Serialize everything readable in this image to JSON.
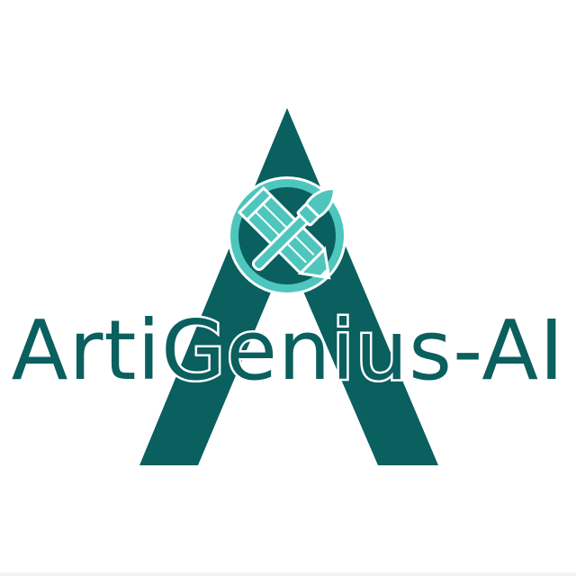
{
  "logo": {
    "wordmark_part1": "Arti",
    "wordmark_part2": "Genius",
    "wordmark_part3": "-AI",
    "icon": "pencil-and-brush-crossed-icon",
    "mark": "letter-a-mark"
  },
  "colors": {
    "primary": "#0a5f5f",
    "accent": "#4ec6bd",
    "background": "#ffffff"
  }
}
